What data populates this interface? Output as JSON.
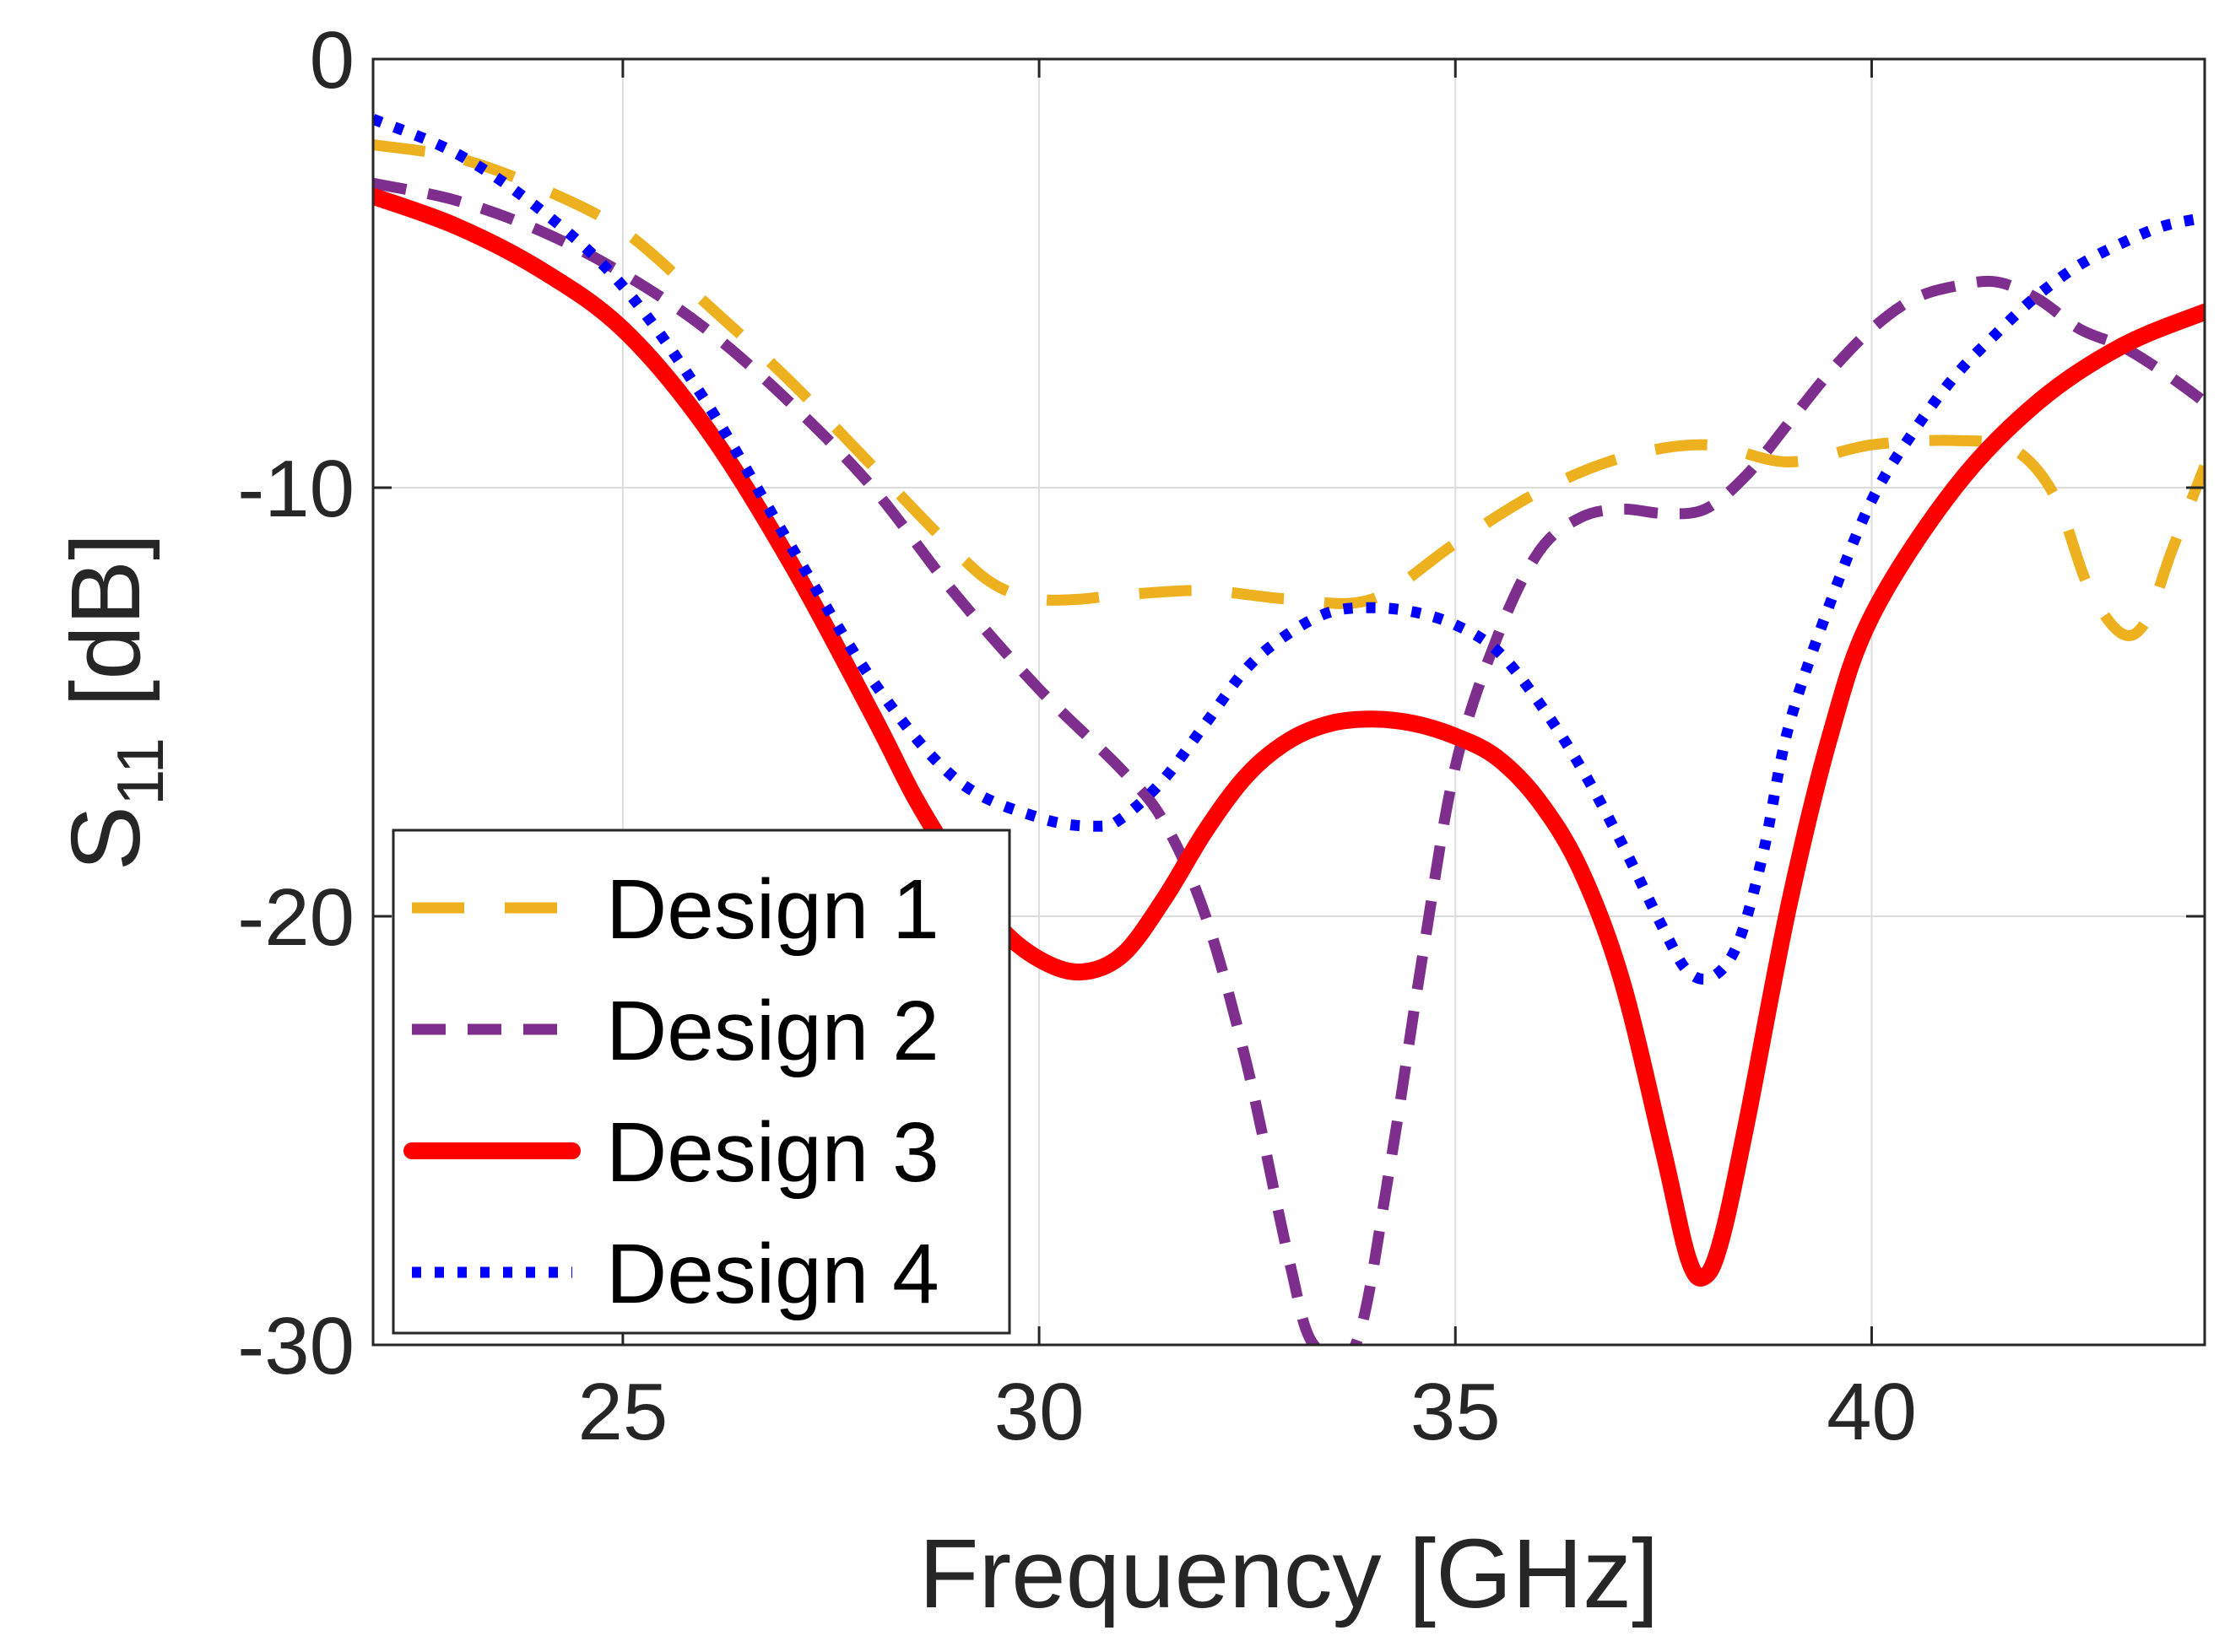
{
  "chart_data": {
    "type": "line",
    "title": "",
    "xlabel": "Frequency [GHz]",
    "ylabel": {
      "base": "S",
      "subscript": "11",
      "unit": "[dB]"
    },
    "xlim": [
      22,
      44
    ],
    "ylim": [
      -30,
      0
    ],
    "xticks": [
      25,
      30,
      35,
      40
    ],
    "yticks": [
      0,
      -10,
      -20,
      -30
    ],
    "grid": true,
    "legend_position": "bottom-left",
    "series": [
      {
        "name": "Design 1",
        "color": "#EDB120",
        "style": "long-dash",
        "x": [
          22,
          23,
          24,
          25,
          26,
          27,
          28,
          29,
          29.5,
          30,
          30.5,
          31,
          32,
          33,
          34,
          35,
          36,
          37,
          38,
          39,
          40,
          41,
          41.7,
          42.2,
          42.6,
          43,
          43.3,
          43.6,
          44
        ],
        "y": [
          -2,
          -2.3,
          -3,
          -4,
          -5.7,
          -7.5,
          -9.5,
          -11.5,
          -12.3,
          -12.6,
          -12.6,
          -12.5,
          -12.4,
          -12.6,
          -12.6,
          -11.3,
          -10.1,
          -9.3,
          -9.0,
          -9.4,
          -9.0,
          -8.9,
          -9.1,
          -10.2,
          -12.3,
          -13.4,
          -13.1,
          -11.5,
          -9.5
        ]
      },
      {
        "name": "Design 2",
        "color": "#7E2F8E",
        "style": "dash",
        "x": [
          22,
          23,
          24,
          25,
          26,
          27,
          28,
          29,
          30,
          31,
          31.5,
          32,
          32.5,
          33,
          33.3,
          33.8,
          34.2,
          34.6,
          35,
          35.5,
          36,
          36.5,
          37,
          37.5,
          38,
          38.5,
          39,
          39.5,
          40,
          40.5,
          41,
          41.5,
          42,
          42.5,
          43,
          43.5,
          44
        ],
        "y": [
          -2.9,
          -3.3,
          -4,
          -5,
          -6.3,
          -8,
          -10,
          -12.5,
          -14.7,
          -16.6,
          -17.8,
          -20,
          -23.5,
          -28,
          -30,
          -30,
          -26,
          -21,
          -16.5,
          -13.5,
          -11.5,
          -10.7,
          -10.5,
          -10.6,
          -10.5,
          -9.7,
          -8.5,
          -7.3,
          -6.3,
          -5.6,
          -5.3,
          -5.2,
          -5.6,
          -6.3,
          -6.7,
          -7.3,
          -8
        ]
      },
      {
        "name": "Design 3",
        "color": "#FF0000",
        "style": "solid",
        "x": [
          22,
          23,
          24,
          25,
          26,
          27,
          28,
          28.5,
          29,
          29.5,
          30,
          30.5,
          31,
          31.5,
          32,
          32.5,
          33,
          33.5,
          34,
          34.5,
          35,
          35.5,
          36,
          36.5,
          37,
          37.5,
          37.8,
          38,
          38.2,
          38.5,
          39,
          39.5,
          40,
          41,
          42,
          43,
          44
        ],
        "y": [
          -3.2,
          -3.9,
          -4.9,
          -6.3,
          -8.6,
          -11.7,
          -15.3,
          -17.2,
          -18.8,
          -20.2,
          -21.0,
          -21.3,
          -20.9,
          -19.6,
          -18.0,
          -16.7,
          -15.9,
          -15.5,
          -15.4,
          -15.5,
          -15.8,
          -16.3,
          -17.3,
          -18.9,
          -21.5,
          -25.5,
          -28.0,
          -28.4,
          -27.5,
          -24.8,
          -19.8,
          -15.8,
          -13.0,
          -10.0,
          -8.0,
          -6.7,
          -5.9
        ]
      },
      {
        "name": "Design 4",
        "color": "#0000FF",
        "style": "dot",
        "x": [
          22,
          23,
          24,
          25,
          26,
          27,
          28,
          29,
          30,
          30.7,
          31,
          31.5,
          32,
          32.5,
          33,
          33.5,
          34,
          34.5,
          35,
          35.5,
          36,
          36.5,
          37,
          37.5,
          37.8,
          38.1,
          38.4,
          38.7,
          39,
          39.5,
          40,
          40.5,
          41,
          41.5,
          42,
          42.5,
          43,
          43.5,
          44
        ],
        "y": [
          -1.4,
          -2.2,
          -3.5,
          -5.3,
          -8,
          -11.3,
          -14.5,
          -16.8,
          -17.7,
          -17.9,
          -17.7,
          -16.8,
          -15.5,
          -14.2,
          -13.4,
          -12.9,
          -12.8,
          -12.9,
          -13.2,
          -13.8,
          -15.0,
          -16.5,
          -18.3,
          -20.3,
          -21.3,
          -21.4,
          -20.6,
          -18.5,
          -15.6,
          -12.7,
          -10.3,
          -8.7,
          -7.4,
          -6.4,
          -5.5,
          -4.8,
          -4.3,
          -3.9,
          -3.7
        ]
      }
    ]
  }
}
